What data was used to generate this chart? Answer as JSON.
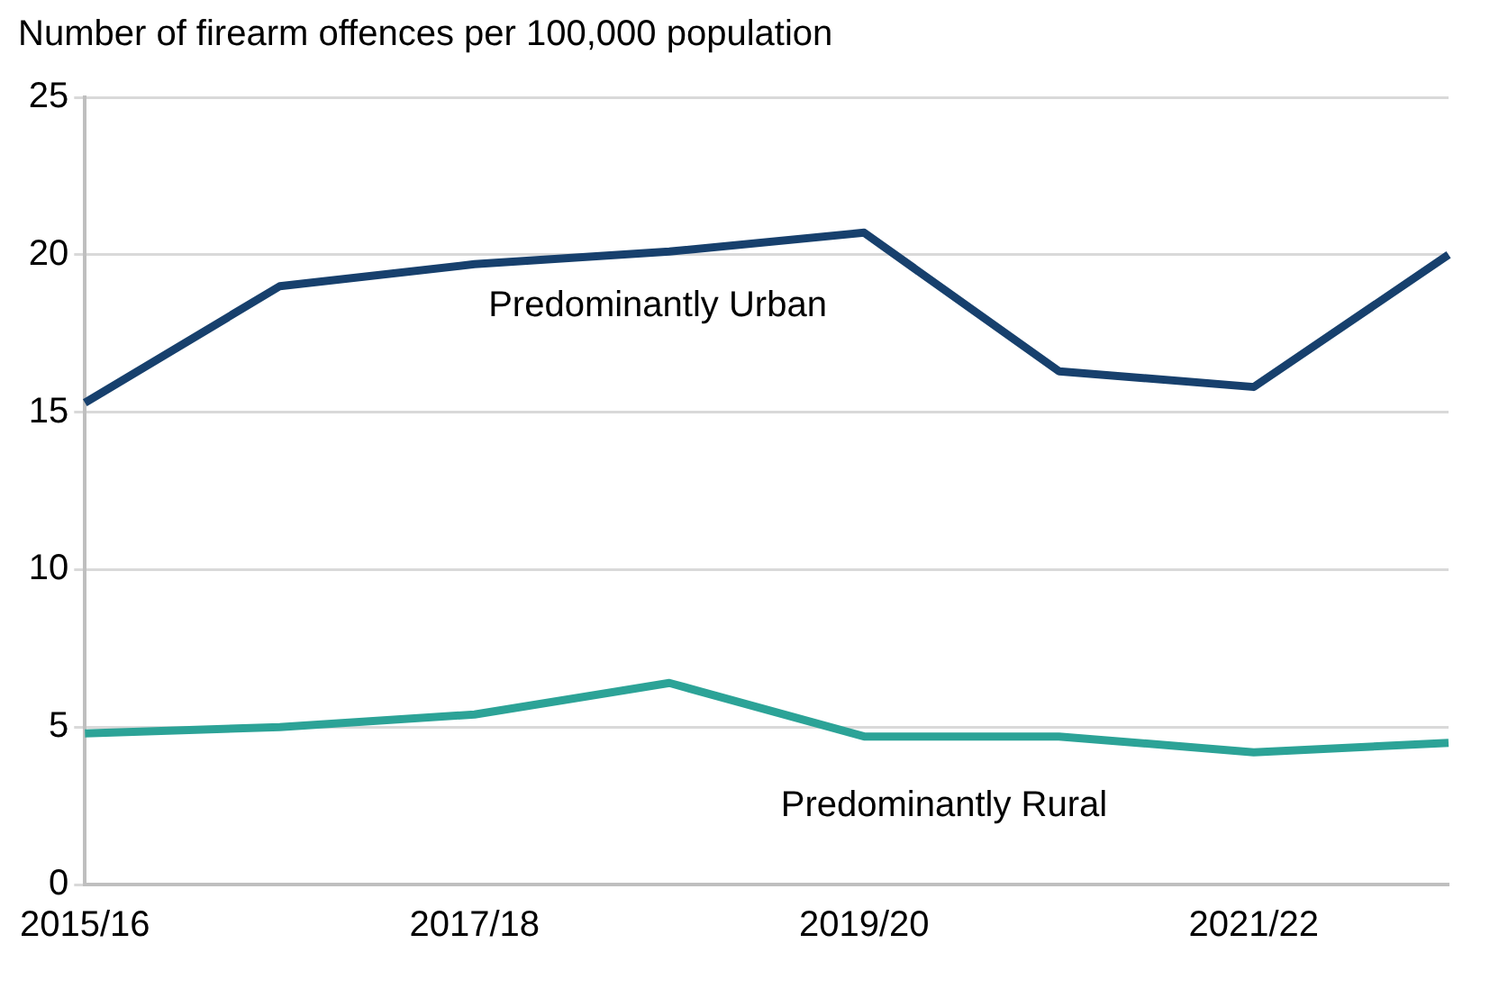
{
  "chart_data": {
    "type": "line",
    "ylabel": "Number of firearm offences per 100,000 population",
    "categories": [
      "2015/16",
      null,
      "2017/18",
      null,
      "2019/20",
      null,
      "2021/22",
      null
    ],
    "series": [
      {
        "name": "Predominantly Urban",
        "color": "#17406d",
        "values": [
          15.3,
          19.0,
          19.7,
          20.1,
          20.7,
          16.3,
          15.8,
          20.0
        ]
      },
      {
        "name": "Predominantly Rural",
        "color": "#2ca397",
        "values": [
          4.8,
          5.0,
          5.4,
          6.4,
          4.7,
          4.7,
          4.2,
          4.5
        ]
      }
    ],
    "ylim": [
      0,
      25
    ],
    "yticks": [
      0,
      5,
      10,
      15,
      20,
      25
    ],
    "grid": "y",
    "legend": false,
    "marker": "none",
    "line_style": "solid"
  }
}
